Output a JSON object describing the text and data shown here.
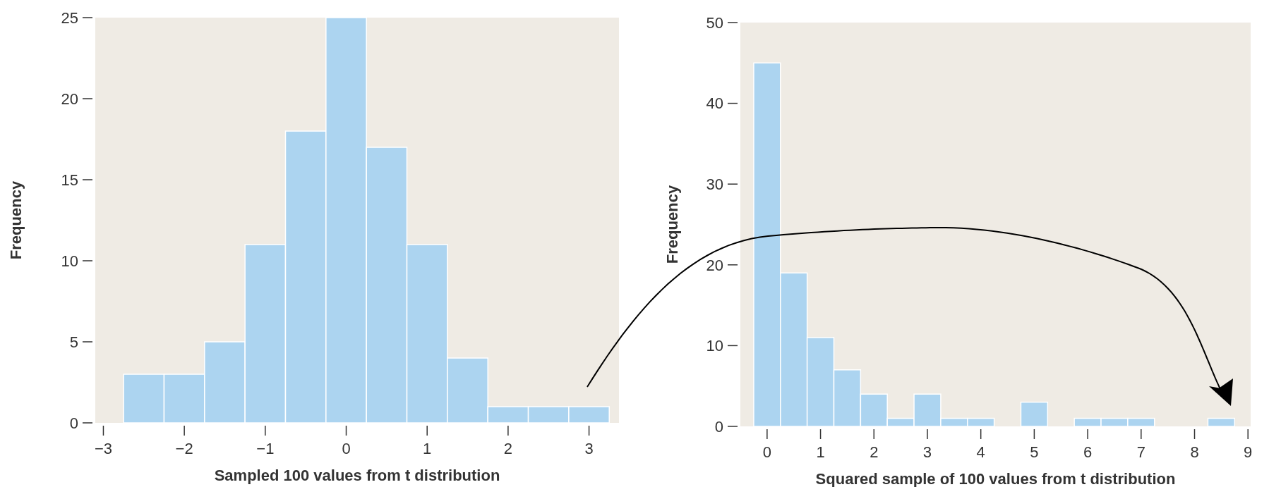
{
  "chart_data": [
    {
      "type": "histogram",
      "xlabel": "Sampled 100 values from t distribution",
      "ylabel": "Frequency",
      "color": "#acd4f0",
      "bins": [
        -2.75,
        -2.25,
        -1.75,
        -1.25,
        -0.75,
        -0.25,
        0.25,
        0.75,
        1.25,
        1.75,
        2.25,
        2.75,
        3.25
      ],
      "values": [
        3,
        3,
        5,
        11,
        18,
        25,
        17,
        11,
        4,
        1,
        1,
        1
      ],
      "xlim": [
        -3.1,
        3.37
      ],
      "xticks": [
        {
          "value": -3,
          "label": "−3"
        },
        {
          "value": -2,
          "label": "−2"
        },
        {
          "value": -1,
          "label": "−1"
        },
        0,
        1,
        2,
        3
      ],
      "ylim": [
        0,
        25
      ],
      "yticks": [
        0,
        5,
        10,
        15,
        20,
        25
      ],
      "grid": false
    },
    {
      "type": "histogram",
      "xlabel": "Squared sample of 100 values from t distribution",
      "ylabel": "Frequency",
      "color": "#acd4f0",
      "bins": [
        -0.25,
        0.25,
        0.75,
        1.25,
        1.75,
        2.25,
        2.75,
        3.25,
        3.75,
        4.25,
        4.75,
        5.25,
        5.75,
        6.25,
        6.75,
        7.25,
        7.75,
        8.25,
        8.75
      ],
      "values": [
        45,
        19,
        11,
        7,
        4,
        1,
        4,
        1,
        1,
        0,
        3,
        0,
        1,
        1,
        1,
        0,
        0,
        1
      ],
      "xlim": [
        -0.5,
        9.05
      ],
      "xticks": [
        0,
        1,
        2,
        3,
        4,
        5,
        6,
        7,
        8,
        9
      ],
      "ylim": [
        0,
        50
      ],
      "yticks": [
        0,
        10,
        20,
        30,
        40,
        50
      ],
      "grid": false
    }
  ]
}
